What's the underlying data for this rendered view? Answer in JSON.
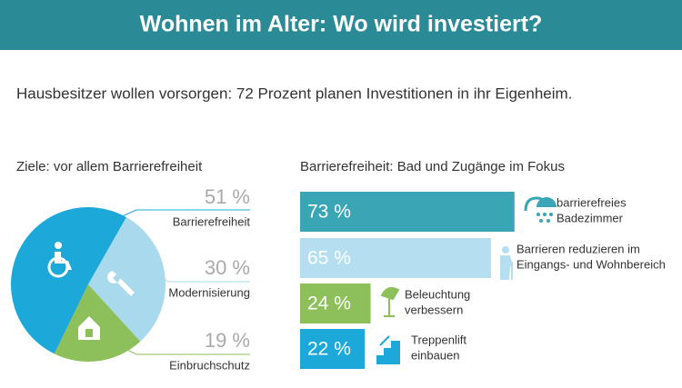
{
  "header": {
    "title": "Wohnen im Alter: Wo wird investiert?"
  },
  "subtitle": "Hausbesitzer wollen vorsorgen: 72 Prozent planen Investitionen in ihr Eigenheim.",
  "chart_data": [
    {
      "type": "pie",
      "title": "Ziele: vor allem Barrierefreiheit",
      "categories": [
        "Barrierefreiheit",
        "Modernisierung",
        "Einbruchschutz"
      ],
      "values": [
        51,
        30,
        19
      ],
      "value_labels": [
        "51 %",
        "30 %",
        "19 %"
      ],
      "colors": [
        "#1ca9d9",
        "#a9d9ec",
        "#8dbf5b"
      ]
    },
    {
      "type": "bar",
      "orientation": "horizontal",
      "title": "Barrierefreiheit: Bad und Zugänge im Fokus",
      "categories": [
        [
          "barrierefreies",
          "Badezimmer"
        ],
        [
          "Barrieren reduzieren im",
          "Eingangs- und Wohnbereich"
        ],
        [
          "Beleuchtung",
          "verbessern"
        ],
        [
          "Treppenlift",
          "einbauen"
        ]
      ],
      "values": [
        73,
        65,
        24,
        22
      ],
      "value_labels": [
        "73 %",
        "65 %",
        "24 %",
        "22 %"
      ],
      "colors": [
        "#3aa5b5",
        "#b6def1",
        "#8dbf5b",
        "#1ca9d9"
      ],
      "xlim": [
        0,
        100
      ]
    }
  ]
}
